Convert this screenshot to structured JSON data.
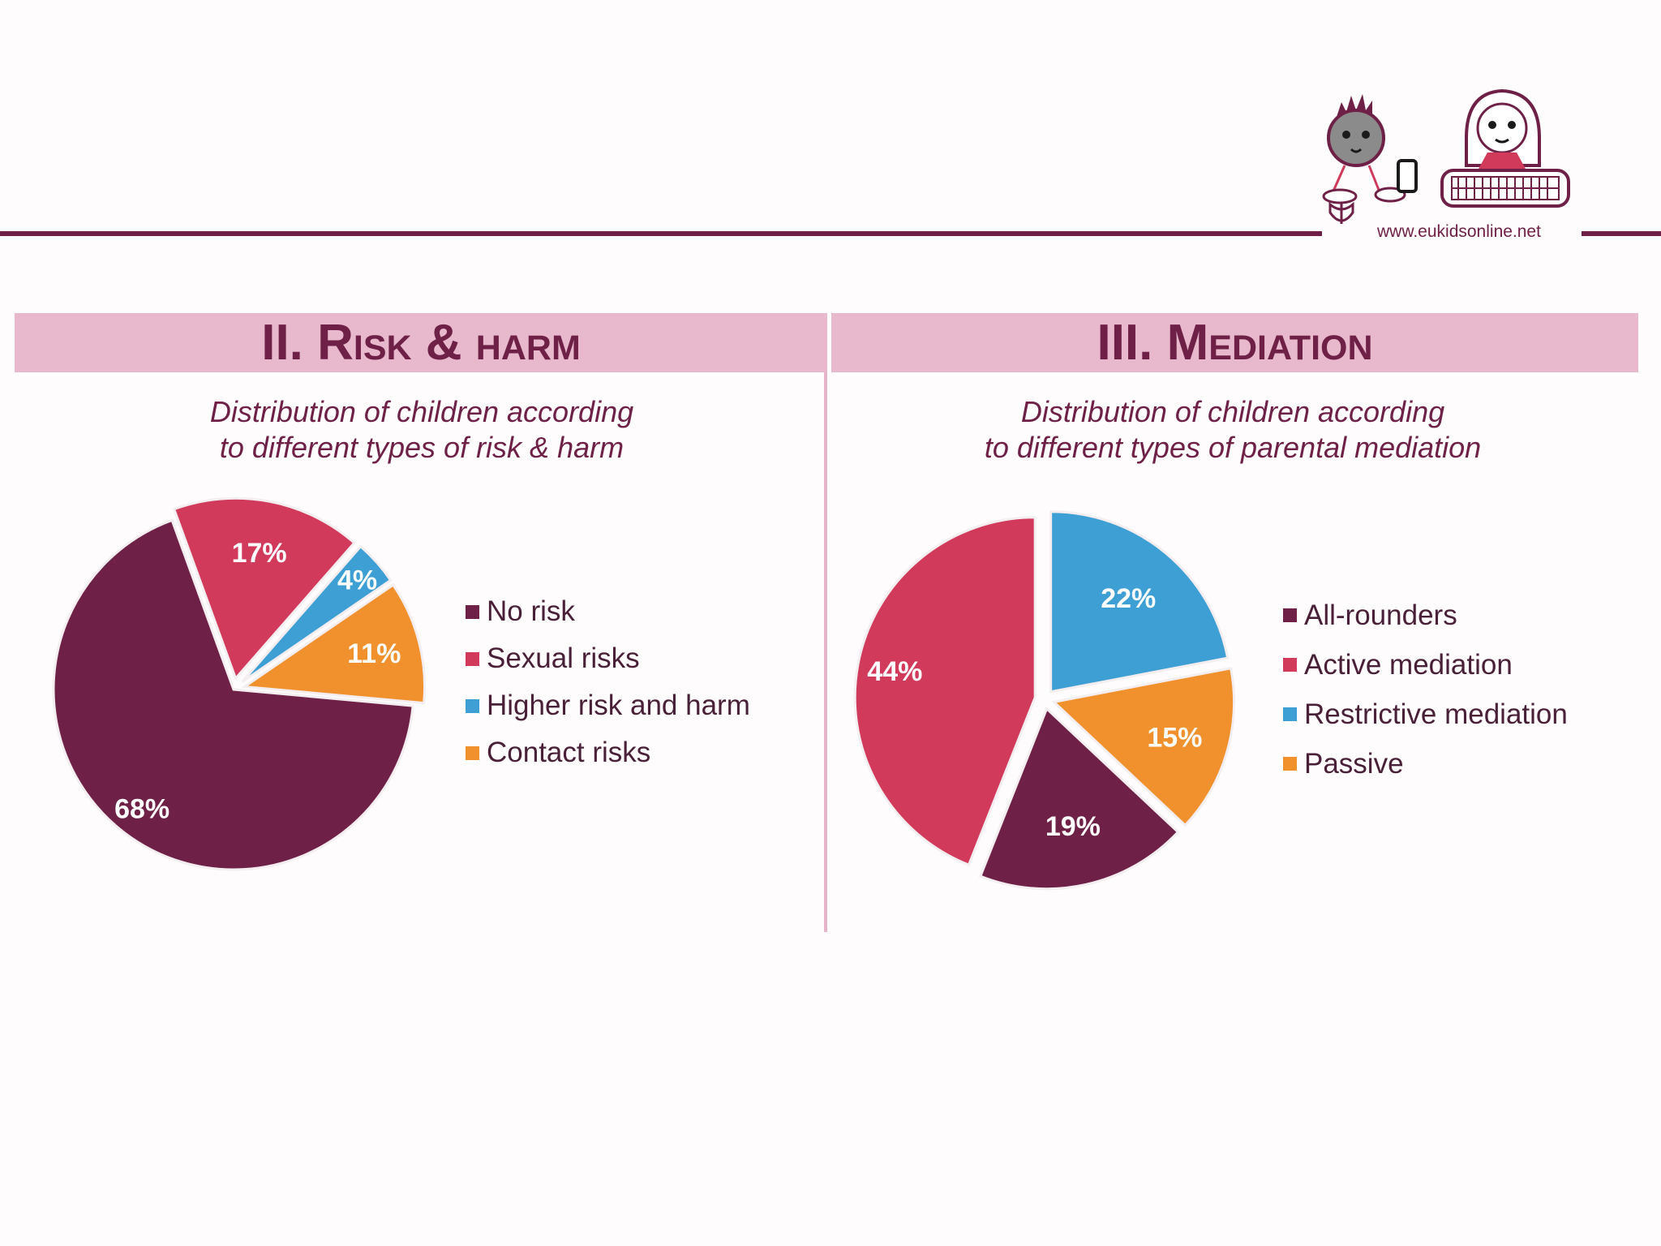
{
  "header": {
    "url": "www.eukidsonline.net",
    "logo": "EU Kids Online logo (two children with devices)"
  },
  "sections": [
    {
      "title": "II. Risk & harm",
      "subtitle_lines": [
        "Distribution of children according",
        "to different types of risk & harm"
      ]
    },
    {
      "title": "III. Mediation",
      "subtitle_lines": [
        "Distribution of children according",
        "to different types of parental mediation"
      ]
    }
  ],
  "colors": {
    "plum": "#6e2047",
    "crimson": "#d23a5c",
    "blue": "#3d9fd3",
    "orange": "#f0912e",
    "band": "#e8b8cc"
  },
  "chart_data": [
    {
      "type": "pie",
      "title": "Distribution of children according to different types of risk & harm",
      "start_angle_deg": 340,
      "direction": "clockwise",
      "slices": [
        {
          "label": "Sexual risks",
          "value": 17,
          "display": "17%",
          "color": "#d23a5c",
          "explode": true
        },
        {
          "label": "Higher risk and harm",
          "value": 4,
          "display": "4%",
          "color": "#3d9fd3",
          "explode": true
        },
        {
          "label": "Contact risks",
          "value": 11,
          "display": "11%",
          "color": "#f0912e",
          "explode": true
        },
        {
          "label": "No risk",
          "value": 68,
          "display": "68%",
          "color": "#6e2047",
          "explode": false
        }
      ],
      "legend": [
        "No risk",
        "Sexual risks",
        "Higher risk and harm",
        "Contact risks"
      ],
      "legend_colors": [
        "#6e2047",
        "#d23a5c",
        "#3d9fd3",
        "#f0912e"
      ],
      "legend_position": "right"
    },
    {
      "type": "pie",
      "title": "Distribution of children according to different types of parental mediation",
      "start_angle_deg": 0,
      "direction": "clockwise",
      "slices": [
        {
          "label": "Restrictive mediation",
          "value": 22,
          "display": "22%",
          "color": "#3d9fd3"
        },
        {
          "label": "Passive",
          "value": 15,
          "display": "15%",
          "color": "#f0912e"
        },
        {
          "label": "All-rounders",
          "value": 19,
          "display": "19%",
          "color": "#6e2047"
        },
        {
          "label": "Active mediation",
          "value": 44,
          "display": "44%",
          "color": "#d23a5c"
        }
      ],
      "legend": [
        "All-rounders",
        "Active mediation",
        "Restrictive mediation",
        "Passive"
      ],
      "legend_colors": [
        "#6e2047",
        "#d23a5c",
        "#3d9fd3",
        "#f0912e"
      ],
      "legend_position": "right",
      "exploded": "all"
    }
  ]
}
